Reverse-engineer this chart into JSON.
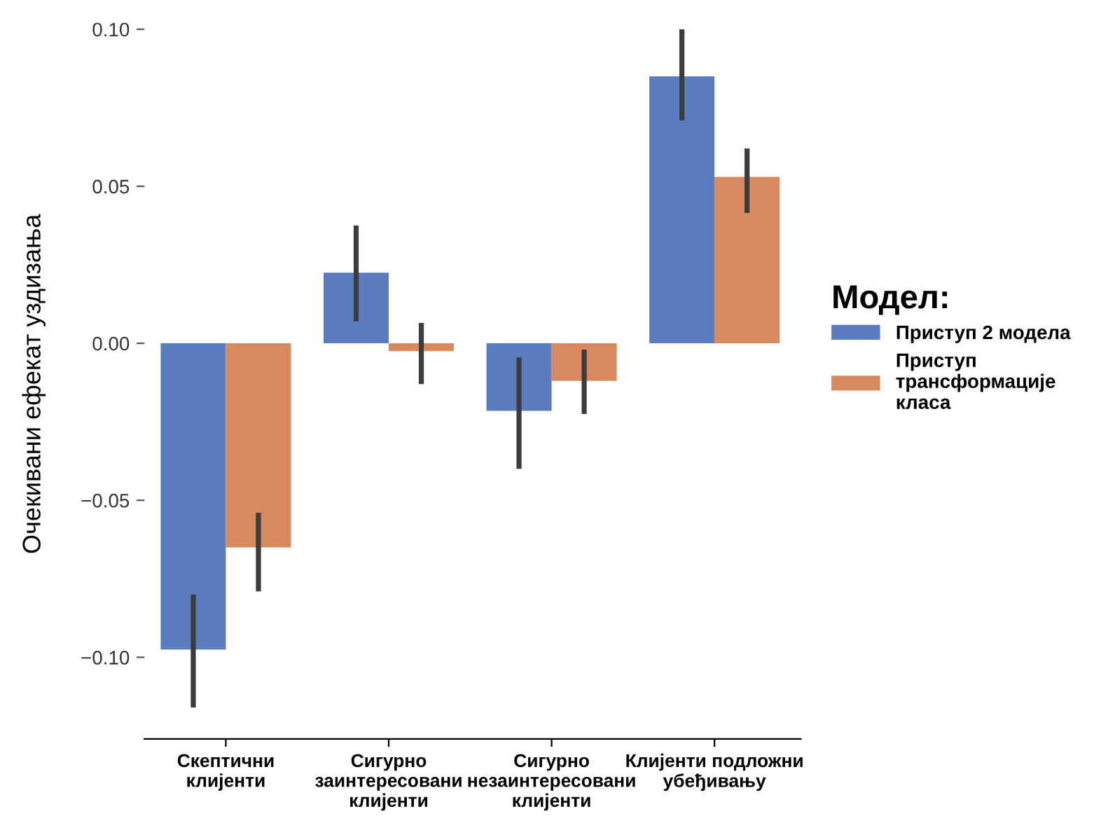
{
  "chart_data": {
    "type": "bar",
    "ylabel": "Очекивани ефекат уздизања",
    "legend_title": "Модел:",
    "categories": [
      "Скептични\nклијенти",
      "Сигурно\nзаинтересовани\nклијенти",
      "Сигурно\nнезаинтересовани\nклијенти",
      "Клијенти подложни\nубеђивању"
    ],
    "series": [
      {
        "name": "Приступ 2 модела",
        "color": "#5a7dbf",
        "values": [
          -0.0975,
          0.0225,
          -0.0215,
          0.085
        ],
        "errors": [
          [
            -0.116,
            -0.08
          ],
          [
            0.007,
            0.0375
          ],
          [
            -0.04,
            -0.0045
          ],
          [
            0.071,
            0.1
          ]
        ]
      },
      {
        "name": "Приступ\nтрансформације\nкласа",
        "color": "#d8895e",
        "values": [
          -0.065,
          -0.0025,
          -0.012,
          0.053
        ],
        "errors": [
          [
            -0.079,
            -0.054
          ],
          [
            -0.013,
            0.0065
          ],
          [
            -0.0225,
            -0.002
          ],
          [
            0.0415,
            0.062
          ]
        ]
      }
    ],
    "ylim": [
      -0.126,
      0.1
    ],
    "yticks": [
      {
        "value": -0.1,
        "label": "−0.10"
      },
      {
        "value": -0.05,
        "label": "−0.05"
      },
      {
        "value": 0.0,
        "label": "0.00"
      },
      {
        "value": 0.05,
        "label": "0.05"
      },
      {
        "value": 0.1,
        "label": "0.10"
      }
    ],
    "grid": false,
    "legend": "right"
  }
}
